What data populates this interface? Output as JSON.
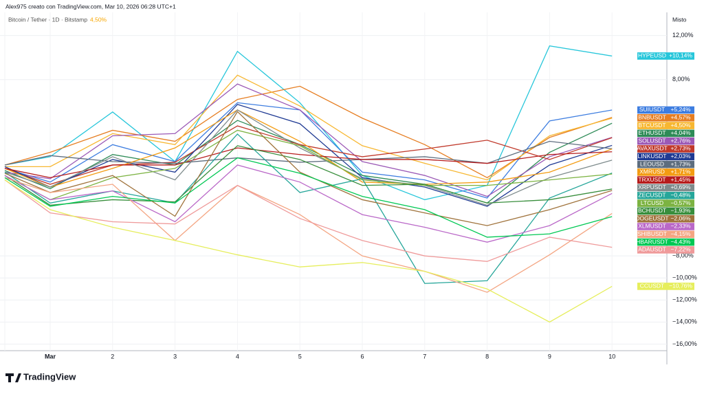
{
  "chart_data": {
    "type": "line",
    "title": "Alex975 creato con TradingView.com, Mar 10, 2026 06:28 UTC+1",
    "subtitle": "Bitcoin / Tether · 1D · Bitstamp",
    "subtitle_value": "4,50%",
    "axis_mode": "Misto",
    "brand": "TradingView",
    "categories": [
      null,
      "Mar",
      "2",
      "3",
      "4",
      "5",
      "6",
      "7",
      "8",
      "9",
      "10"
    ],
    "ylim": [
      -16.6,
      14.1
    ],
    "yticks": [
      {
        "value": 12,
        "label": "12,00%"
      },
      {
        "value": 8,
        "label": "8,00%"
      },
      {
        "value": -8,
        "label": "−8,00%"
      },
      {
        "value": -10,
        "label": "−10,00%"
      },
      {
        "value": -12,
        "label": "−12,00%"
      },
      {
        "value": -14,
        "label": "−14,00%"
      },
      {
        "value": -16,
        "label": "−16,00%"
      }
    ],
    "grid": true,
    "series": [
      {
        "name": "HYPEUSD",
        "color": "#26c6da",
        "values": [
          0.25,
          1.0,
          5.06,
          0.56,
          10.56,
          5.9,
          -0.7,
          -2.9,
          -1.6,
          11.06,
          10.14
        ],
        "value_labels": [
          null,
          null,
          null,
          null,
          null,
          null,
          null,
          null,
          null,
          null,
          "+10,14%"
        ]
      },
      {
        "name": "SUIUSDT",
        "color": "#3d7de0",
        "values": [
          -0.06,
          -1.3,
          2.1,
          0.56,
          5.9,
          5.25,
          -0.4,
          -1.1,
          -2.75,
          4.25,
          5.24
        ],
        "value_labels": [
          null,
          null,
          null,
          null,
          null,
          null,
          null,
          null,
          null,
          null,
          "+5,24%"
        ]
      },
      {
        "name": "BNBUSDT",
        "color": "#e67e22",
        "values": [
          0.25,
          1.4,
          3.4,
          2.4,
          6.2,
          7.4,
          4.5,
          2.1,
          -0.9,
          2.75,
          4.57
        ],
        "value_labels": [
          null,
          null,
          null,
          null,
          null,
          null,
          null,
          null,
          null,
          null,
          "+4,57%"
        ]
      },
      {
        "name": "BTCUSDT",
        "color": "#f7b731",
        "values": [
          0.1,
          0.1,
          3.1,
          2.1,
          8.4,
          5.6,
          2.0,
          0.4,
          -1.1,
          2.9,
          4.5
        ],
        "value_labels": [
          null,
          null,
          null,
          null,
          null,
          null,
          null,
          null,
          null,
          null,
          "+4,50%"
        ]
      },
      {
        "name": "ETHUSDT",
        "color": "#2e8b57",
        "values": [
          -0.25,
          -1.9,
          1.2,
          0.25,
          4.3,
          2.1,
          -0.7,
          -1.5,
          -3.2,
          1.4,
          4.04
        ],
        "value_labels": [
          null,
          null,
          null,
          null,
          null,
          null,
          null,
          null,
          null,
          null,
          "+4,04%"
        ]
      },
      {
        "name": "SOLUSDT",
        "color": "#9b59b6",
        "values": [
          -0.4,
          -1.0,
          2.9,
          3.1,
          7.6,
          5.25,
          0.56,
          -0.7,
          -2.6,
          1.0,
          2.76
        ],
        "value_labels": [
          null,
          null,
          null,
          null,
          null,
          null,
          null,
          null,
          null,
          null,
          "+2,76%"
        ]
      },
      {
        "name": "AVAXUSDT",
        "color": "#c0392b",
        "values": [
          -0.06,
          -1.5,
          0.25,
          0.5,
          3.8,
          2.1,
          1.0,
          1.7,
          2.5,
          0.75,
          2.73
        ],
        "value_labels": [
          null,
          null,
          null,
          null,
          null,
          null,
          null,
          null,
          null,
          null,
          "+2,73%"
        ]
      },
      {
        "name": "LINKUSDT",
        "color": "#1f3a93",
        "values": [
          0.1,
          -1.75,
          0.75,
          -0.4,
          5.75,
          4.0,
          -0.9,
          -1.75,
          -3.5,
          0.25,
          2.03
        ],
        "value_labels": [
          null,
          null,
          null,
          null,
          null,
          null,
          null,
          null,
          null,
          null,
          "+2,03%"
        ]
      },
      {
        "name": "LEOUSD",
        "color": "#5d6d7e",
        "values": [
          0.25,
          1.1,
          0.56,
          0.4,
          0.9,
          0.5,
          0.75,
          1.0,
          0.4,
          2.4,
          1.73
        ],
        "value_labels": [
          null,
          null,
          null,
          null,
          null,
          null,
          null,
          null,
          null,
          null,
          "+1,73%"
        ]
      },
      {
        "name": "XMRUSD",
        "color": "#f39c12",
        "values": [
          -0.06,
          -1.75,
          -0.06,
          1.8,
          5.25,
          2.4,
          -1.3,
          -1.5,
          -1.3,
          -0.4,
          1.71
        ],
        "value_labels": [
          null,
          null,
          null,
          null,
          null,
          null,
          null,
          null,
          null,
          null,
          "+1,71%"
        ]
      },
      {
        "name": "TRXUSDT",
        "color": "#b71c1c",
        "values": [
          -0.06,
          -0.9,
          0.25,
          0.25,
          1.8,
          1.2,
          0.75,
          0.75,
          0.4,
          1.2,
          1.45
        ],
        "value_labels": [
          null,
          null,
          null,
          null,
          null,
          null,
          null,
          null,
          null,
          null,
          "+1,45%"
        ]
      },
      {
        "name": "XRPUSDT",
        "color": "#7f8c8d",
        "values": [
          -0.4,
          -1.75,
          1.0,
          -1.1,
          5.25,
          1.8,
          -1.0,
          -1.6,
          -3.4,
          -0.9,
          0.69
        ],
        "value_labels": [
          null,
          null,
          null,
          null,
          null,
          null,
          null,
          null,
          null,
          null,
          "+0,69%"
        ]
      },
      {
        "name": "ZECUSDT",
        "color": "#26a69a",
        "values": [
          -0.4,
          -3.2,
          -2.1,
          -3.2,
          3.06,
          -2.25,
          -1.0,
          -10.5,
          -10.25,
          -2.75,
          -0.48
        ],
        "value_labels": [
          null,
          null,
          null,
          null,
          null,
          null,
          null,
          null,
          null,
          null,
          "−0,48%"
        ]
      },
      {
        "name": "LTCUSD",
        "color": "#7cb342",
        "values": [
          -0.7,
          -2.9,
          -0.9,
          -0.06,
          3.4,
          2.0,
          -1.1,
          -1.6,
          -1.6,
          -1.1,
          -0.57
        ],
        "value_labels": [
          null,
          null,
          null,
          null,
          null,
          null,
          null,
          null,
          null,
          null,
          "−0,57%"
        ]
      },
      {
        "name": "BCHUSDT",
        "color": "#388e3c",
        "values": [
          -0.7,
          -3.4,
          -2.9,
          -3.1,
          2.0,
          0.75,
          -1.6,
          -1.5,
          -3.2,
          -2.9,
          -1.93
        ],
        "value_labels": [
          null,
          null,
          null,
          null,
          null,
          null,
          null,
          null,
          null,
          null,
          "−1,93%"
        ]
      },
      {
        "name": "DOGEUSDT",
        "color": "#a0733c",
        "values": [
          -0.5,
          -2.25,
          -0.7,
          -4.4,
          5.1,
          -0.4,
          -2.9,
          -4.1,
          -5.25,
          -3.8,
          -2.06
        ],
        "value_labels": [
          null,
          null,
          null,
          null,
          null,
          null,
          null,
          null,
          null,
          null,
          "−2,06%"
        ]
      },
      {
        "name": "XLMUSDT",
        "color": "#ba68c8",
        "values": [
          -0.7,
          -2.9,
          -2.1,
          -4.9,
          0.25,
          -1.3,
          -4.25,
          -5.4,
          -6.75,
          -5.25,
          -2.33
        ],
        "value_labels": [
          null,
          null,
          null,
          null,
          null,
          null,
          null,
          null,
          null,
          null,
          "−2,33%"
        ]
      },
      {
        "name": "SHIBUSDT",
        "color": "#f4a582",
        "values": [
          -0.9,
          -2.25,
          -1.5,
          -6.6,
          -1.6,
          -4.25,
          -8.0,
          -9.4,
          -11.3,
          -7.9,
          -4.15
        ],
        "value_labels": [
          null,
          null,
          null,
          null,
          null,
          null,
          null,
          null,
          null,
          null,
          "−4,15%"
        ]
      },
      {
        "name": "HBARUSDT",
        "color": "#00c853",
        "values": [
          -0.9,
          -3.5,
          -2.6,
          -3.2,
          0.9,
          -0.5,
          -2.6,
          -3.8,
          -6.3,
          -6.0,
          -4.43
        ],
        "value_labels": [
          null,
          null,
          null,
          null,
          null,
          null,
          null,
          null,
          null,
          null,
          "−4,43%"
        ]
      },
      {
        "name": "ADAUSDT",
        "color": "#ef9a9a",
        "values": [
          -1.1,
          -4.1,
          -4.9,
          -5.1,
          -1.6,
          -4.6,
          -6.6,
          -8.0,
          -8.5,
          -6.3,
          -7.22
        ],
        "value_labels": [
          null,
          null,
          null,
          null,
          null,
          null,
          null,
          null,
          null,
          null,
          "−7,22%"
        ]
      },
      {
        "name": "CCUSDT",
        "color": "#e6ee5c",
        "values": [
          -1.1,
          -3.8,
          -5.4,
          -6.6,
          -7.9,
          -9.0,
          -8.6,
          -9.4,
          -11.0,
          -14.0,
          -10.76
        ],
        "value_labels": [
          null,
          null,
          null,
          null,
          null,
          null,
          null,
          null,
          null,
          null,
          "−10,76%"
        ]
      }
    ]
  }
}
